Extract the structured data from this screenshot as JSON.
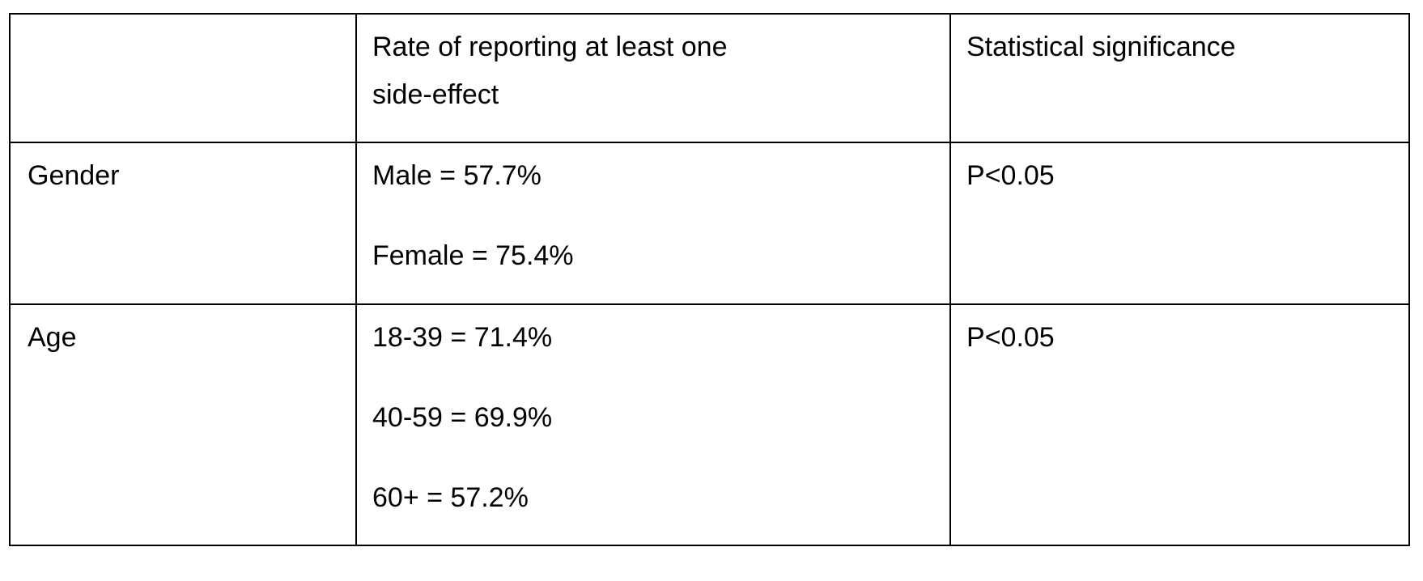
{
  "table": {
    "headers": [
      "",
      "Rate of reporting at least one side-effect",
      "Statistical significance"
    ],
    "header_lines": [
      "Rate of reporting at least one",
      "side-effect"
    ],
    "rows": [
      {
        "label": "Gender",
        "rates": [
          "Male = 57.7%",
          "Female = 75.4%"
        ],
        "significance": "P<0.05"
      },
      {
        "label": "Age",
        "rates": [
          "18-39 = 71.4%",
          "40-59 = 69.9%",
          "60+ = 57.2%"
        ],
        "significance": "P<0.05"
      }
    ]
  }
}
